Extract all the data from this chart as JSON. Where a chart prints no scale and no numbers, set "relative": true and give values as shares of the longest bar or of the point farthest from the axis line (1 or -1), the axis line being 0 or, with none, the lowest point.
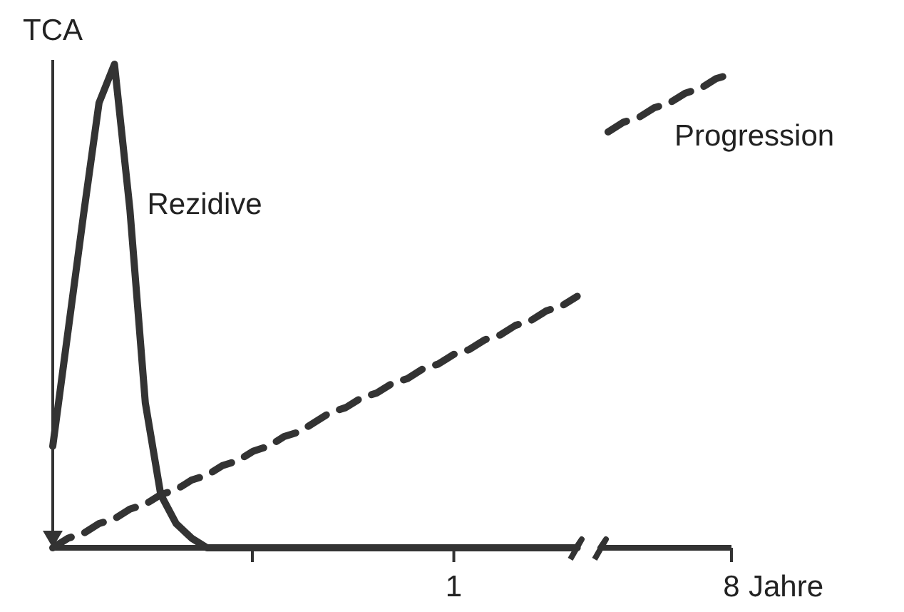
{
  "chart_data": {
    "type": "line",
    "relative": true,
    "ylabel": "TCA",
    "xlabel": "Jahre",
    "tick_labels": "x",
    "categories": [
      null,
      null,
      null,
      null,
      null,
      null,
      null,
      null,
      null,
      null,
      null,
      null,
      null,
      null,
      null,
      null,
      null,
      null,
      null,
      null,
      null,
      null,
      null,
      null,
      null,
      null,
      "1",
      null,
      null,
      null,
      null,
      null,
      null,
      null,
      null,
      null,
      null,
      null,
      null,
      null,
      null,
      null,
      null,
      null,
      "8"
    ],
    "series": [
      {
        "name": "Rezidive",
        "color": "#333333",
        "line_style": "solid",
        "values": [
          0.21,
          0.45,
          0.69,
          0.92,
          1,
          0.7,
          0.3,
          0.11,
          0.05,
          0.02,
          0,
          0,
          0,
          0,
          0,
          0,
          0,
          0,
          0,
          0,
          0,
          0,
          0,
          0,
          0,
          0,
          0,
          0,
          0,
          0,
          0,
          0,
          0,
          0,
          0,
          null,
          null,
          null,
          null,
          null,
          null,
          null,
          null,
          null,
          null
        ]
      },
      {
        "name": "Progression",
        "color": "#333333",
        "line_style": "dashed",
        "values": [
          0,
          0.02,
          0.03,
          0.05,
          0.06,
          0.08,
          0.09,
          0.11,
          0.12,
          0.14,
          0.15,
          0.17,
          0.18,
          0.2,
          0.21,
          0.23,
          0.24,
          0.26,
          0.28,
          0.29,
          0.31,
          0.32,
          0.34,
          0.35,
          0.37,
          0.38,
          0.4,
          0.41,
          0.43,
          0.44,
          0.46,
          0.47,
          0.49,
          0.5,
          0.52,
          null,
          0.86,
          0.88,
          0.89,
          0.91,
          0.92,
          0.94,
          0.95,
          0.97,
          0.98
        ]
      }
    ]
  }
}
